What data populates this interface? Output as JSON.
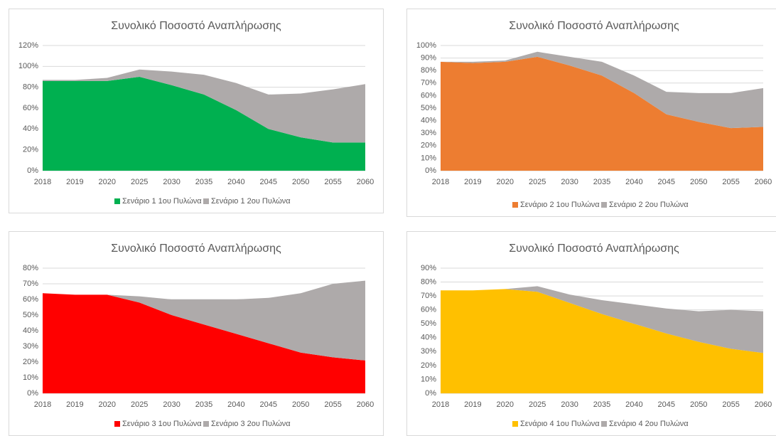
{
  "chart_data": [
    {
      "type": "stacked_area",
      "title": "Συνολικό Ποσοστό Αναπλήρωσης",
      "categories": [
        "2018",
        "2019",
        "2020",
        "2025",
        "2030",
        "2035",
        "2040",
        "2045",
        "2050",
        "2055",
        "2060"
      ],
      "series": [
        {
          "name": "Σενάριο 1 1ου Πυλώνα",
          "color": "#00b050",
          "values": [
            86,
            86,
            86,
            90,
            82,
            73,
            58,
            40,
            32,
            27,
            27
          ]
        },
        {
          "name": "Σενάριο 1 2ου Πυλώνα",
          "color": "#aeaaaa",
          "values": [
            1,
            1,
            3,
            7,
            13,
            19,
            26,
            33,
            42,
            51,
            56
          ]
        }
      ],
      "ylim": [
        0,
        120
      ],
      "yticks": [
        {
          "value": 0,
          "label": "0%"
        },
        {
          "value": 20,
          "label": "20%"
        },
        {
          "value": 40,
          "label": "40%"
        },
        {
          "value": 60,
          "label": "60%"
        },
        {
          "value": 80,
          "label": "80%"
        },
        {
          "value": 100,
          "label": "100%"
        },
        {
          "value": 120,
          "label": "120%"
        }
      ],
      "grid": true,
      "legend": "bottom"
    },
    {
      "type": "stacked_area",
      "title": "Συνολικό Ποσοστό Αναπλήρωσης",
      "categories": [
        "2018",
        "2019",
        "2020",
        "2025",
        "2030",
        "2035",
        "2040",
        "2045",
        "2050",
        "2055",
        "2060"
      ],
      "series": [
        {
          "name": "Σενάριο 2 1ου Πυλώνα",
          "color": "#ed7d31",
          "values": [
            87,
            86,
            87,
            91,
            84,
            76,
            62,
            45,
            39,
            34,
            35
          ]
        },
        {
          "name": "Σενάριο 2 2ου Πυλώνα",
          "color": "#aeaaaa",
          "values": [
            0,
            1,
            1,
            4,
            7,
            11,
            14,
            18,
            23,
            28,
            31
          ]
        }
      ],
      "ylim": [
        0,
        100
      ],
      "yticks": [
        {
          "value": 0,
          "label": "0%"
        },
        {
          "value": 10,
          "label": "10%"
        },
        {
          "value": 20,
          "label": "20%"
        },
        {
          "value": 30,
          "label": "30%"
        },
        {
          "value": 40,
          "label": "40%"
        },
        {
          "value": 50,
          "label": "50%"
        },
        {
          "value": 60,
          "label": "60%"
        },
        {
          "value": 70,
          "label": "70%"
        },
        {
          "value": 80,
          "label": "80%"
        },
        {
          "value": 90,
          "label": "90%"
        },
        {
          "value": 100,
          "label": "100%"
        }
      ],
      "grid": true,
      "legend": "bottom"
    },
    {
      "type": "stacked_area",
      "title": "Συνολικό Ποσοστό Αναπλήρωσης",
      "categories": [
        "2018",
        "2019",
        "2020",
        "2025",
        "2030",
        "2035",
        "2040",
        "2045",
        "2050",
        "2055",
        "2060"
      ],
      "series": [
        {
          "name": "Σενάριο 3 1ου Πυλώνα",
          "color": "#ff0000",
          "values": [
            64,
            63,
            63,
            58,
            50,
            44,
            38,
            32,
            26,
            23,
            21
          ]
        },
        {
          "name": "Σενάριο 3 2ου Πυλώνα",
          "color": "#aeaaaa",
          "values": [
            0,
            0,
            0,
            4,
            10,
            16,
            22,
            29,
            38,
            47,
            51
          ]
        }
      ],
      "ylim": [
        0,
        80
      ],
      "yticks": [
        {
          "value": 0,
          "label": "0%"
        },
        {
          "value": 10,
          "label": "10%"
        },
        {
          "value": 20,
          "label": "20%"
        },
        {
          "value": 30,
          "label": "30%"
        },
        {
          "value": 40,
          "label": "40%"
        },
        {
          "value": 50,
          "label": "50%"
        },
        {
          "value": 60,
          "label": "60%"
        },
        {
          "value": 70,
          "label": "70%"
        },
        {
          "value": 80,
          "label": "80%"
        }
      ],
      "grid": true,
      "legend": "bottom"
    },
    {
      "type": "stacked_area",
      "title": "Συνολικό Ποσοστό Αναπλήρωσης",
      "categories": [
        "2018",
        "2019",
        "2020",
        "2025",
        "2030",
        "2035",
        "2040",
        "2045",
        "2050",
        "2055",
        "2060"
      ],
      "series": [
        {
          "name": "Σενάριο 4 1ου Πυλώνα",
          "color": "#ffc000",
          "values": [
            74,
            74,
            75,
            73,
            65,
            57,
            50,
            43,
            37,
            32,
            29
          ]
        },
        {
          "name": "Σενάριο 4 2ου Πυλώνα",
          "color": "#aeaaaa",
          "values": [
            0,
            0,
            0,
            4,
            6,
            10,
            14,
            18,
            22,
            28,
            30
          ]
        }
      ],
      "ylim": [
        0,
        90
      ],
      "yticks": [
        {
          "value": 0,
          "label": "0%"
        },
        {
          "value": 10,
          "label": "10%"
        },
        {
          "value": 20,
          "label": "20%"
        },
        {
          "value": 30,
          "label": "30%"
        },
        {
          "value": 40,
          "label": "40%"
        },
        {
          "value": 50,
          "label": "50%"
        },
        {
          "value": 60,
          "label": "60%"
        },
        {
          "value": 70,
          "label": "70%"
        },
        {
          "value": 80,
          "label": "80%"
        },
        {
          "value": 90,
          "label": "90%"
        }
      ],
      "grid": true,
      "legend": "bottom"
    }
  ]
}
